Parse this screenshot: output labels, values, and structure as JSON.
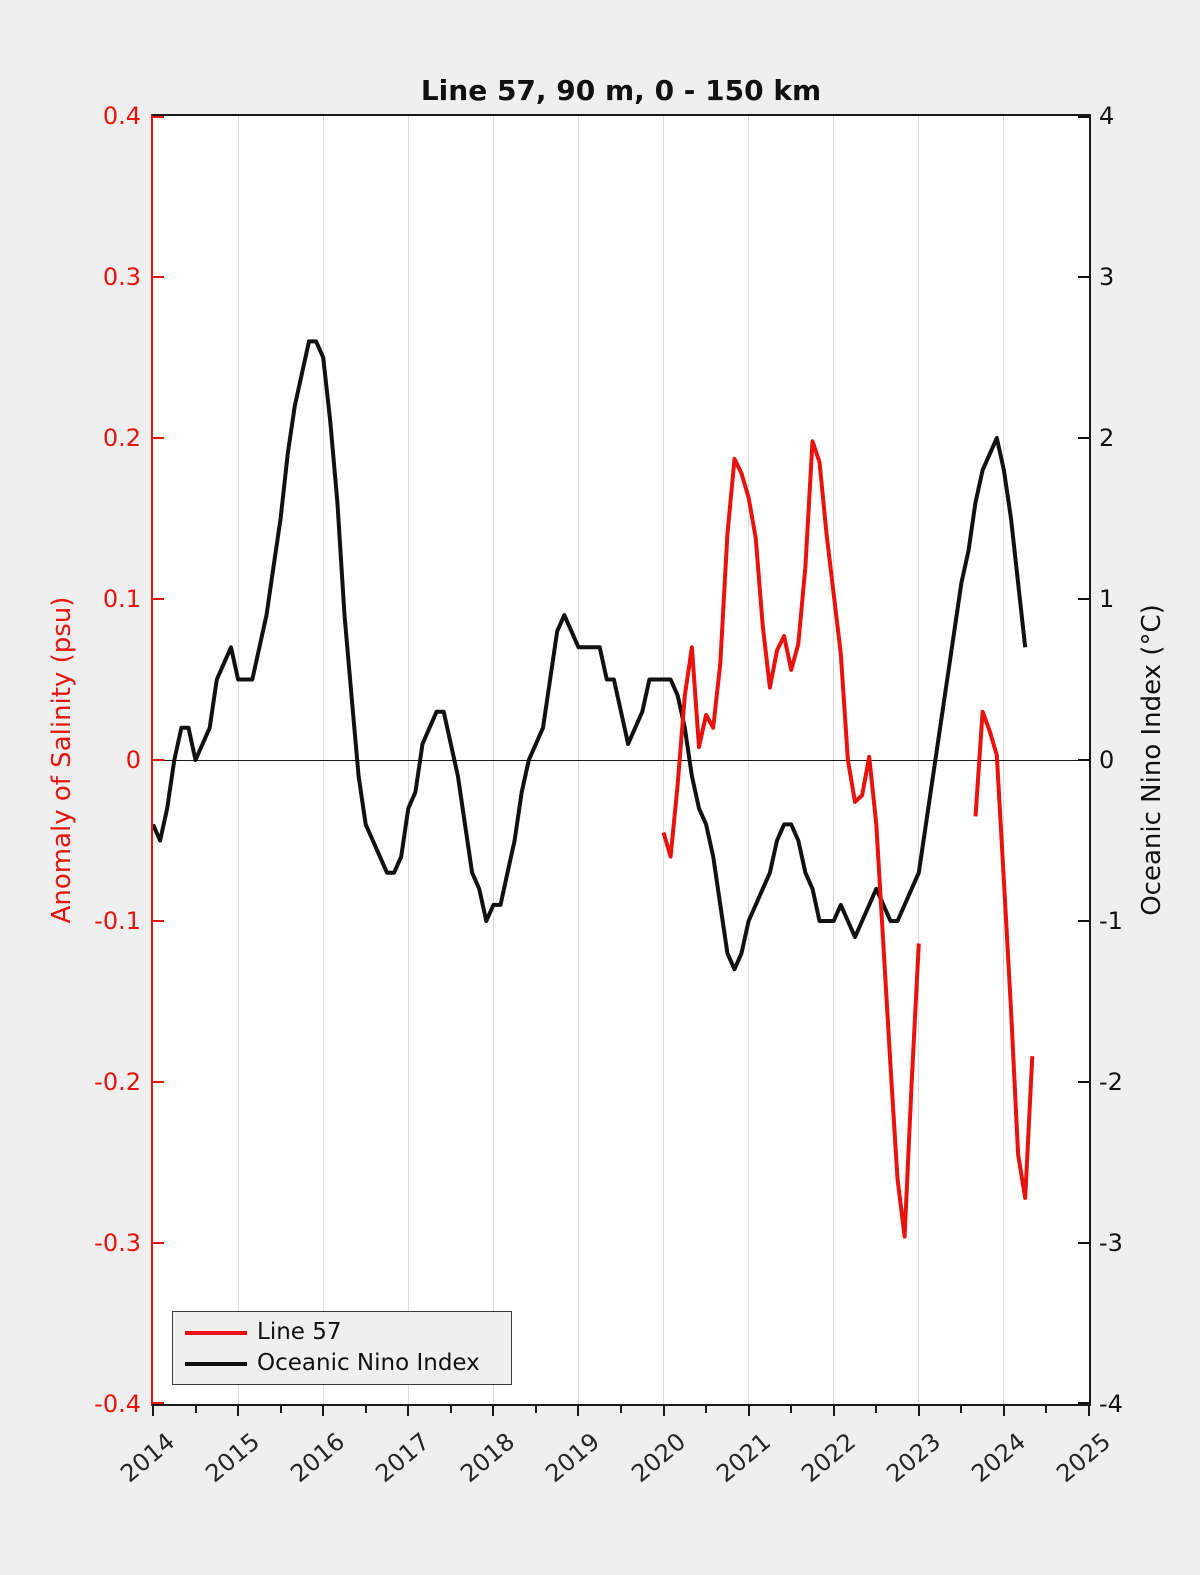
{
  "title": "Line 57, 90 m, 0 - 150 km",
  "colors": {
    "figure_bg": "#efefef",
    "plot_bg": "#ffffff",
    "gridline": "#dcdcdc",
    "salinity_red": "#e8130c",
    "oni_black": "#111111"
  },
  "legend": {
    "items": [
      {
        "label": "Line 57",
        "color": "#e8130c"
      },
      {
        "label": "Oceanic Nino Index",
        "color": "#111111"
      }
    ]
  },
  "chart_data": {
    "type": "line",
    "title": "Line 57, 90 m, 0 - 150 km",
    "grid": "vertical-year-gridlines",
    "legend_position": "lower-left",
    "x_axis": {
      "min": 2014,
      "max": 2025,
      "tick_labels": [
        "2014",
        "2015",
        "2016",
        "2017",
        "2018",
        "2019",
        "2020",
        "2021",
        "2022",
        "2023",
        "2024",
        "2025"
      ],
      "minor_tick_step": 0.5,
      "label_rotation_deg": 40
    },
    "left_y_axis": {
      "label": "Anomaly of Salinity (psu)",
      "min": -0.4,
      "max": 0.4,
      "tick_labels": [
        "0.4",
        "0.3",
        "0.2",
        "0.1",
        "0",
        "-0.1",
        "-0.2",
        "-0.3",
        "-0.4"
      ],
      "color": "#e8130c"
    },
    "right_y_axis": {
      "label": "Oceanic Nino Index (°C)",
      "min": -4,
      "max": 4,
      "tick_labels": [
        "4",
        "3",
        "2",
        "1",
        "0",
        "-1",
        "-2",
        "-3",
        "-4"
      ],
      "color": "#111111"
    },
    "zero_line": true,
    "series": [
      {
        "name": "Oceanic Nino Index",
        "axis": "right",
        "color": "#111111",
        "line_width": 4,
        "segments": [
          {
            "x_start": 2014.0,
            "x_step": 0.0833333,
            "values": [
              -0.4,
              -0.5,
              -0.3,
              0.0,
              0.2,
              0.2,
              0.0,
              0.1,
              0.2,
              0.5,
              0.6,
              0.7,
              0.5,
              0.5,
              0.5,
              0.7,
              0.9,
              1.2,
              1.5,
              1.9,
              2.2,
              2.4,
              2.6,
              2.6,
              2.5,
              2.1,
              1.6,
              0.9,
              0.4,
              -0.1,
              -0.4,
              -0.5,
              -0.6,
              -0.7,
              -0.7,
              -0.6,
              -0.3,
              -0.2,
              0.1,
              0.2,
              0.3,
              0.3,
              0.1,
              -0.1,
              -0.4,
              -0.7,
              -0.8,
              -1.0,
              -0.9,
              -0.9,
              -0.7,
              -0.5,
              -0.2,
              0.0,
              0.1,
              0.2,
              0.5,
              0.8,
              0.9,
              0.8,
              0.7,
              0.7,
              0.7,
              0.7,
              0.5,
              0.5,
              0.3,
              0.1,
              0.2,
              0.3,
              0.5,
              0.5,
              0.5,
              0.5,
              0.4,
              0.2,
              -0.1,
              -0.3,
              -0.4,
              -0.6,
              -0.9,
              -1.2,
              -1.3,
              -1.2,
              -1.0,
              -0.9,
              -0.8,
              -0.7,
              -0.5,
              -0.4,
              -0.4,
              -0.5,
              -0.7,
              -0.8,
              -1.0,
              -1.0,
              -1.0,
              -0.9,
              -1.0,
              -1.1,
              -1.0,
              -0.9,
              -0.8,
              -0.9,
              -1.0,
              -1.0,
              -0.9,
              -0.8,
              -0.7,
              -0.4,
              -0.1,
              0.2,
              0.5,
              0.8,
              1.1,
              1.3,
              1.6,
              1.8,
              1.9,
              2.0,
              1.8,
              1.5,
              1.1,
              0.7
            ]
          }
        ]
      },
      {
        "name": "Line 57",
        "axis": "left",
        "color": "#e8130c",
        "line_width": 4,
        "segments": [
          {
            "x_start": 2020.0,
            "x_step": 0.0833333,
            "values": [
              -0.045,
              -0.06,
              -0.015,
              0.04,
              0.07,
              0.008,
              0.028,
              0.02,
              0.06,
              0.14,
              0.187,
              0.178,
              0.163,
              0.138,
              0.083,
              0.045,
              0.068,
              0.077,
              0.056,
              0.072,
              0.12,
              0.198,
              0.185,
              0.14,
              0.103,
              0.066,
              0.0,
              -0.026,
              -0.022,
              0.002,
              -0.04,
              -0.115,
              -0.19,
              -0.26,
              -0.296,
              -0.2,
              -0.114
            ]
          },
          {
            "x_start": 2023.6667,
            "x_step": 0.0833333,
            "values": [
              -0.035,
              0.03,
              0.018,
              0.003,
              -0.075,
              -0.155,
              -0.245,
              -0.272,
              -0.184
            ]
          }
        ]
      }
    ]
  }
}
